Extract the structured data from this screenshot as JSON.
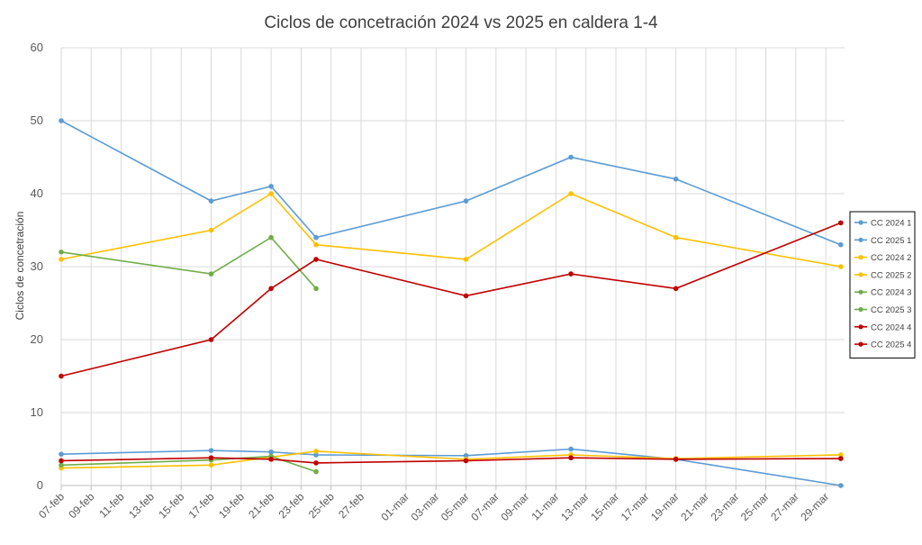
{
  "chart_data": {
    "type": "line",
    "title": "Ciclos de concetración 2024 vs 2025 en caldera 1-4",
    "xlabel": "",
    "ylabel": "Ciclos de concetración",
    "ylim": [
      0,
      60
    ],
    "yticks": [
      0,
      10,
      20,
      30,
      40,
      50,
      60
    ],
    "grid": true,
    "legend_position": "right",
    "x_ticks": [
      "07-feb",
      "09-feb",
      "11-feb",
      "13-feb",
      "15-feb",
      "17-feb",
      "19-feb",
      "21-feb",
      "23-feb",
      "25-feb",
      "27-feb",
      "01-mar",
      "03-mar",
      "05-mar",
      "07-mar",
      "09-mar",
      "11-mar",
      "13-mar",
      "15-mar",
      "17-mar",
      "19-mar",
      "21-mar",
      "23-mar",
      "25-mar",
      "27-mar",
      "29-mar"
    ],
    "series": [
      {
        "name": "CC 2024 1",
        "color": "#5b9bd5",
        "points": [
          [
            "07-feb",
            4.3
          ],
          [
            "17-feb",
            4.8
          ],
          [
            "21-feb",
            4.6
          ],
          [
            "24-feb",
            4.2
          ],
          [
            "05-mar",
            4.1
          ],
          [
            "12-mar",
            5.0
          ],
          [
            "19-mar",
            3.6
          ],
          [
            "30-mar",
            0
          ]
        ]
      },
      {
        "name": "CC 2025 1",
        "color": "#5b9bd5",
        "points": [
          [
            "07-feb",
            50
          ],
          [
            "17-feb",
            39
          ],
          [
            "21-feb",
            41
          ],
          [
            "24-feb",
            34
          ],
          [
            "05-mar",
            39
          ],
          [
            "12-mar",
            45
          ],
          [
            "19-mar",
            42
          ],
          [
            "30-mar",
            33
          ]
        ]
      },
      {
        "name": "CC 2024 2",
        "color": "#ffc000",
        "points": [
          [
            "07-feb",
            2.4
          ],
          [
            "17-feb",
            2.8
          ],
          [
            "21-feb",
            3.9
          ],
          [
            "24-feb",
            4.7
          ],
          [
            "05-mar",
            3.6
          ],
          [
            "12-mar",
            4.2
          ],
          [
            "19-mar",
            3.7
          ],
          [
            "30-mar",
            4.2
          ]
        ]
      },
      {
        "name": "CC 2025 2",
        "color": "#ffc000",
        "points": [
          [
            "07-feb",
            31
          ],
          [
            "17-feb",
            35
          ],
          [
            "21-feb",
            40
          ],
          [
            "24-feb",
            33
          ],
          [
            "05-mar",
            31
          ],
          [
            "12-mar",
            40
          ],
          [
            "19-mar",
            34
          ],
          [
            "30-mar",
            30
          ]
        ]
      },
      {
        "name": "CC 2024 3",
        "color": "#70ad47",
        "points": [
          [
            "07-feb",
            2.8
          ],
          [
            "17-feb",
            3.5
          ],
          [
            "21-feb",
            4.0
          ],
          [
            "24-feb",
            1.9
          ]
        ]
      },
      {
        "name": "CC 2025 3",
        "color": "#70ad47",
        "points": [
          [
            "07-feb",
            32
          ],
          [
            "17-feb",
            29
          ],
          [
            "21-feb",
            34
          ],
          [
            "24-feb",
            27
          ]
        ]
      },
      {
        "name": "CC 2024 4",
        "color": "#c00000",
        "points": [
          [
            "07-feb",
            3.4
          ],
          [
            "17-feb",
            3.8
          ],
          [
            "21-feb",
            3.6
          ],
          [
            "24-feb",
            3.1
          ],
          [
            "05-mar",
            3.4
          ],
          [
            "12-mar",
            3.8
          ],
          [
            "19-mar",
            3.6
          ],
          [
            "30-mar",
            3.7
          ]
        ]
      },
      {
        "name": "CC 2025 4",
        "color": "#c00000",
        "points": [
          [
            "07-feb",
            15
          ],
          [
            "17-feb",
            20
          ],
          [
            "21-feb",
            27
          ],
          [
            "24-feb",
            31
          ],
          [
            "05-mar",
            26
          ],
          [
            "12-mar",
            29
          ],
          [
            "19-mar",
            27
          ],
          [
            "30-mar",
            36
          ]
        ]
      }
    ]
  }
}
